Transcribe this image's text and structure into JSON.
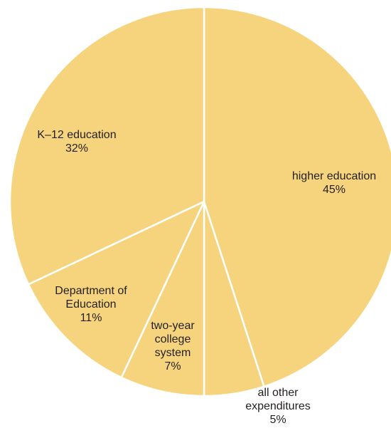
{
  "chart_data": {
    "type": "pie",
    "slices": [
      {
        "label_lines": [
          "higher education"
        ],
        "value": 45,
        "value_text": "45%"
      },
      {
        "label_lines": [
          "all other",
          "expenditures"
        ],
        "value": 5,
        "value_text": "5%"
      },
      {
        "label_lines": [
          "two-year",
          "college",
          "system"
        ],
        "value": 7,
        "value_text": "7%"
      },
      {
        "label_lines": [
          "Department of",
          "Education"
        ],
        "value": 11,
        "value_text": "11%"
      },
      {
        "label_lines": [
          "K–12 education"
        ],
        "value": 32,
        "value_text": "32%"
      }
    ],
    "start": "12 o'clock",
    "direction": "clockwise",
    "legend": "none",
    "colors": {
      "slice_fill": "#f6d47d",
      "slice_border": "#ffffff",
      "label_text": "#231f20"
    }
  }
}
